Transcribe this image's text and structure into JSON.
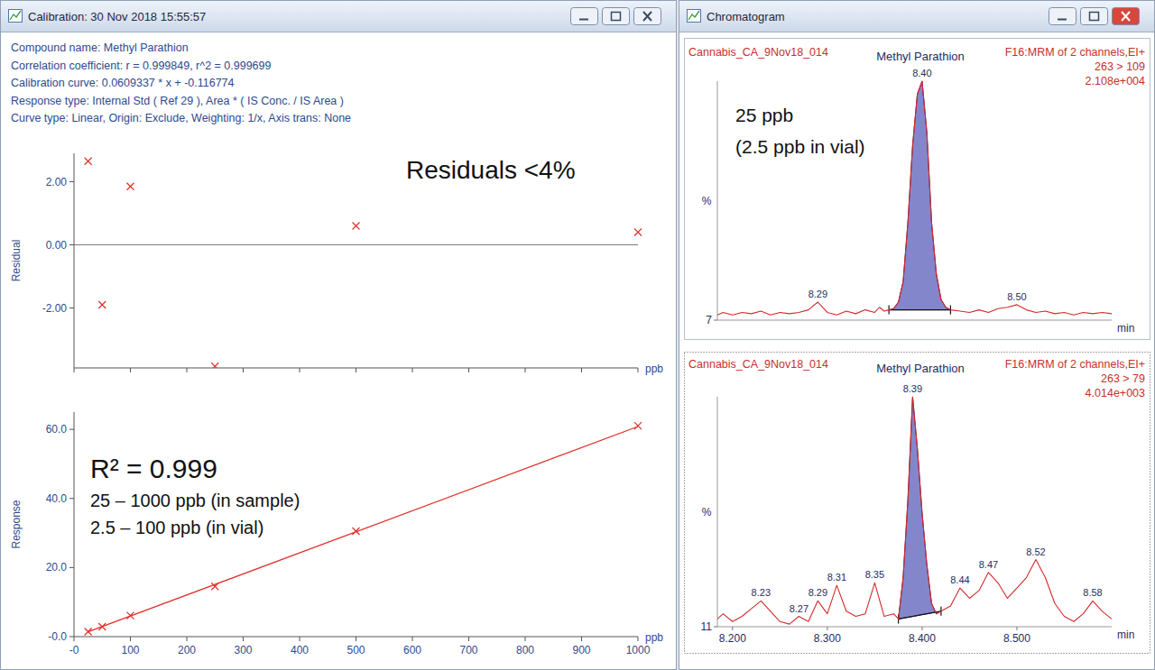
{
  "windows": [
    {
      "title": "Calibration: 30 Nov 2018 15:55:57",
      "lines": [
        "Compound name: Methyl Parathion",
        "Correlation coefficient: r = 0.999849, r^2 = 0.999699",
        "Calibration curve: 0.0609337 * x + -0.116774",
        "Response type: Internal Std ( Ref 29 ), Area * ( IS Conc. / IS Area )",
        "Curve type: Linear, Origin: Exclude, Weighting: 1/x, Axis trans: None"
      ]
    },
    {
      "title": "Chromatogram"
    }
  ],
  "chart_data": [
    {
      "type": "scatter",
      "x_label": "ppb",
      "y_label": "Residual",
      "annotations": [
        "Residuals <4%"
      ],
      "x": [
        25,
        50,
        100,
        250,
        500,
        1000
      ],
      "values": [
        2.65,
        -1.9,
        1.85,
        -3.85,
        0.6,
        0.4
      ],
      "color": "#e0302a",
      "marker": "x",
      "xlim": [
        0,
        1000
      ],
      "ylim": [
        -3.9,
        2.9
      ],
      "xticks": [
        0,
        100,
        200,
        300,
        400,
        500,
        600,
        700,
        800,
        900,
        1000
      ],
      "yticks": [
        {
          "value": -2,
          "label": "-2.00"
        },
        {
          "value": 0,
          "label": "0.00"
        },
        {
          "value": 2,
          "label": "2.00"
        }
      ],
      "reference_line": 0,
      "tick_labels": "y",
      "grid": false
    },
    {
      "type": "scatter",
      "x_label": "ppb",
      "y_label": "Response",
      "annotations": [
        "R² = 0.999",
        "25 – 1000 ppb (in sample)",
        "2.5 – 100 ppb (in vial)"
      ],
      "series": [
        {
          "type": "scatter",
          "marker": "x",
          "color": "#e0302a",
          "x": [
            25,
            50,
            100,
            250,
            500,
            1000
          ],
          "values": [
            1.44,
            2.87,
            6.09,
            14.55,
            30.53,
            61.06
          ]
        },
        {
          "type": "line",
          "line_style": "solid",
          "color": "#e0302a",
          "x": [
            25,
            1000
          ],
          "values": [
            1.41,
            60.82
          ]
        }
      ],
      "xlim": [
        0,
        1000
      ],
      "ylim": [
        0,
        65
      ],
      "xticks": [
        {
          "value": 0,
          "label": "-0"
        },
        100,
        200,
        300,
        400,
        500,
        600,
        700,
        800,
        900,
        1000
      ],
      "yticks": [
        {
          "value": 0,
          "label": "-0.0"
        },
        {
          "value": 20,
          "label": "20.0"
        },
        {
          "value": 40,
          "label": "40.0"
        },
        {
          "value": 60,
          "label": "60.0"
        }
      ],
      "grid": false
    },
    {
      "type": "line",
      "title": "Methyl Parathion",
      "sample": "Cannabis_CA_9Nov18_014",
      "channel": "F16:MRM of 2 channels,EI+",
      "transition": "263 > 109",
      "intensity": "2.108e+004",
      "annotations": [
        "25 ppb",
        "(2.5 ppb in vial)"
      ],
      "x_label": "min",
      "y_label": "%",
      "x": [
        8.184,
        8.19,
        8.2,
        8.21,
        8.22,
        8.23,
        8.24,
        8.25,
        8.26,
        8.27,
        8.28,
        8.29,
        8.3,
        8.31,
        8.32,
        8.33,
        8.34,
        8.35,
        8.355,
        8.36,
        8.365,
        8.37,
        8.375,
        8.38,
        8.385,
        8.39,
        8.395,
        8.4,
        8.405,
        8.41,
        8.415,
        8.42,
        8.425,
        8.43,
        8.44,
        8.45,
        8.46,
        8.47,
        8.48,
        8.49,
        8.5,
        8.51,
        8.52,
        8.53,
        8.54,
        8.55,
        8.56,
        8.57,
        8.58,
        8.59,
        8.6
      ],
      "values": [
        9,
        10,
        9,
        10,
        9.5,
        10.5,
        9,
        10,
        9.5,
        10,
        11,
        14,
        10,
        9,
        10.5,
        9.5,
        11,
        10,
        12,
        10.5,
        11,
        11.5,
        14,
        22,
        45,
        75,
        95,
        100,
        80,
        45,
        25,
        15,
        12,
        11,
        10.5,
        10,
        11,
        10,
        11.5,
        12,
        13,
        11,
        10,
        10.5,
        9.5,
        10,
        9,
        10,
        9.5,
        10,
        9.5
      ],
      "color": "#d42a2a",
      "xlim": [
        8.184,
        8.6
      ],
      "ylim": [
        7,
        100
      ],
      "xticks": [],
      "yticks": [
        7
      ],
      "tick_labels": "y",
      "grid": false,
      "peak_labels": [
        {
          "value": 8.29,
          "label": "8.29"
        },
        {
          "value": 8.4,
          "label": "8.40"
        },
        {
          "value": 8.5,
          "label": "8.50"
        }
      ],
      "integration": [
        8.365,
        8.43
      ]
    },
    {
      "type": "line",
      "title": "Methyl Parathion",
      "sample": "Cannabis_CA_9Nov18_014",
      "channel": "F16:MRM of 2 channels,EI+",
      "transition": "263 > 79",
      "intensity": "4.014e+003",
      "x_label": "min",
      "y_label": "%",
      "x": [
        8.184,
        8.19,
        8.2,
        8.21,
        8.22,
        8.23,
        8.24,
        8.25,
        8.26,
        8.27,
        8.28,
        8.29,
        8.3,
        8.31,
        8.32,
        8.33,
        8.34,
        8.35,
        8.36,
        8.37,
        8.375,
        8.38,
        8.385,
        8.39,
        8.395,
        8.4,
        8.405,
        8.41,
        8.415,
        8.42,
        8.43,
        8.44,
        8.45,
        8.46,
        8.47,
        8.48,
        8.49,
        8.5,
        8.51,
        8.52,
        8.53,
        8.54,
        8.55,
        8.56,
        8.57,
        8.58,
        8.59,
        8.6
      ],
      "values": [
        14,
        16,
        13,
        15,
        18,
        21,
        17,
        13,
        12,
        15,
        13,
        21,
        16,
        27,
        17,
        15,
        16,
        28,
        15,
        16,
        14,
        30,
        60,
        100,
        80,
        55,
        35,
        20,
        16,
        17,
        19,
        26,
        22,
        25,
        32,
        28,
        22,
        26,
        30,
        37,
        30,
        20,
        15,
        13,
        16,
        21,
        17,
        14
      ],
      "color": "#d42a2a",
      "xlim": [
        8.184,
        8.6
      ],
      "ylim": [
        11,
        100
      ],
      "xticks": [
        {
          "value": 8.2,
          "label": "8.200"
        },
        {
          "value": 8.3,
          "label": "8.300"
        },
        {
          "value": 8.4,
          "label": "8.400"
        },
        {
          "value": 8.5,
          "label": "8.500"
        }
      ],
      "yticks": [
        11
      ],
      "grid": false,
      "peak_labels": [
        {
          "value": 8.23,
          "label": "8.23"
        },
        {
          "value": 8.27,
          "label": "8.27"
        },
        {
          "value": 8.29,
          "label": "8.29"
        },
        {
          "value": 8.31,
          "label": "8.31"
        },
        {
          "value": 8.35,
          "label": "8.35"
        },
        {
          "value": 8.39,
          "label": "8.39"
        },
        {
          "value": 8.44,
          "label": "8.44"
        },
        {
          "value": 8.47,
          "label": "8.47"
        },
        {
          "value": 8.52,
          "label": "8.52"
        },
        {
          "value": 8.58,
          "label": "8.58"
        }
      ],
      "integration": [
        8.375,
        8.42
      ]
    }
  ]
}
